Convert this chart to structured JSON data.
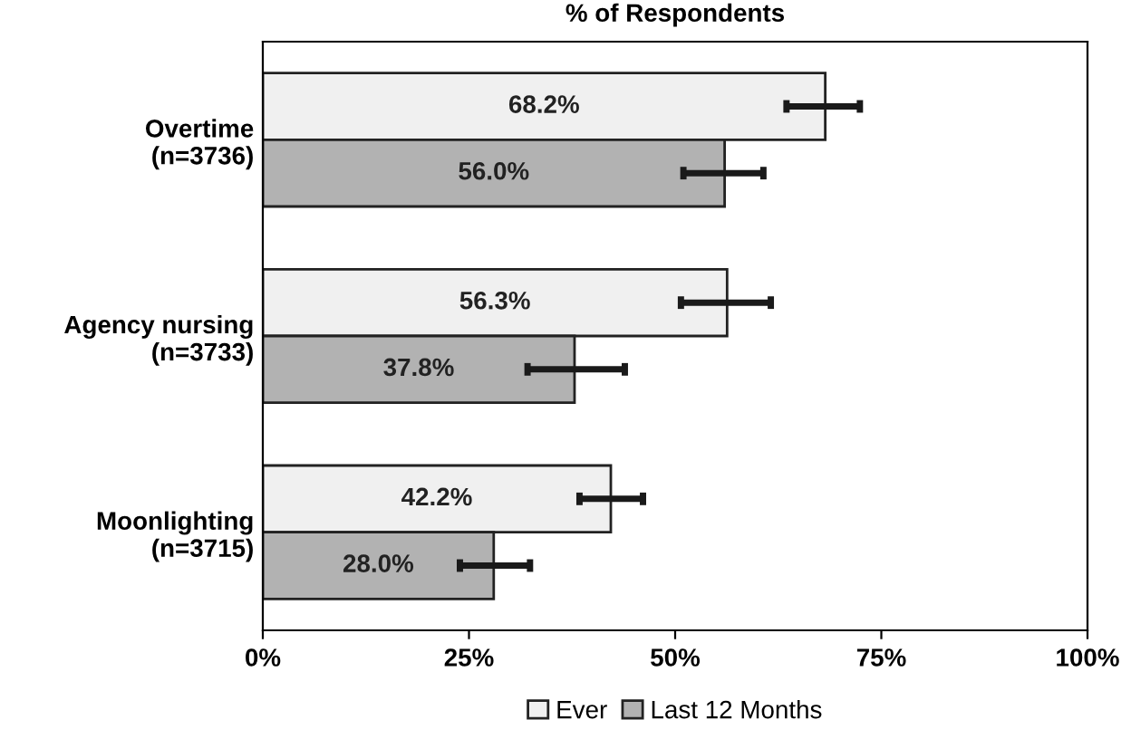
{
  "chart_data": {
    "type": "bar",
    "orientation": "horizontal",
    "title": "% of Respondents",
    "categories": [
      "Overtime\n(n=3736)",
      "Agency nursing\n(n=3733)",
      "Moonlighting\n(n=3715)"
    ],
    "series": [
      {
        "name": "Ever",
        "color": "#f0f0f0",
        "values": [
          68.2,
          56.3,
          42.2
        ],
        "errors": [
          [
            63.5,
            72.4
          ],
          [
            50.7,
            61.6
          ],
          [
            38.4,
            46.1
          ]
        ],
        "value_labels": [
          "68.2%",
          "56.3%",
          "42.2%"
        ]
      },
      {
        "name": "Last 12 Months",
        "color": "#b2b2b2",
        "values": [
          56.0,
          37.8,
          28.0
        ],
        "errors": [
          [
            51.0,
            60.7
          ],
          [
            32.1,
            43.9
          ],
          [
            23.9,
            32.4
          ]
        ],
        "value_labels": [
          "56.0%",
          "37.8%",
          "28.0%"
        ]
      }
    ],
    "xlim": [
      0,
      100
    ],
    "xticks": [
      {
        "value": 0,
        "label": "0%"
      },
      {
        "value": 25,
        "label": "25%"
      },
      {
        "value": 50,
        "label": "50%"
      },
      {
        "value": 75,
        "label": "75%"
      },
      {
        "value": 100,
        "label": "100%"
      }
    ],
    "grid": false,
    "legend": "bottom"
  }
}
